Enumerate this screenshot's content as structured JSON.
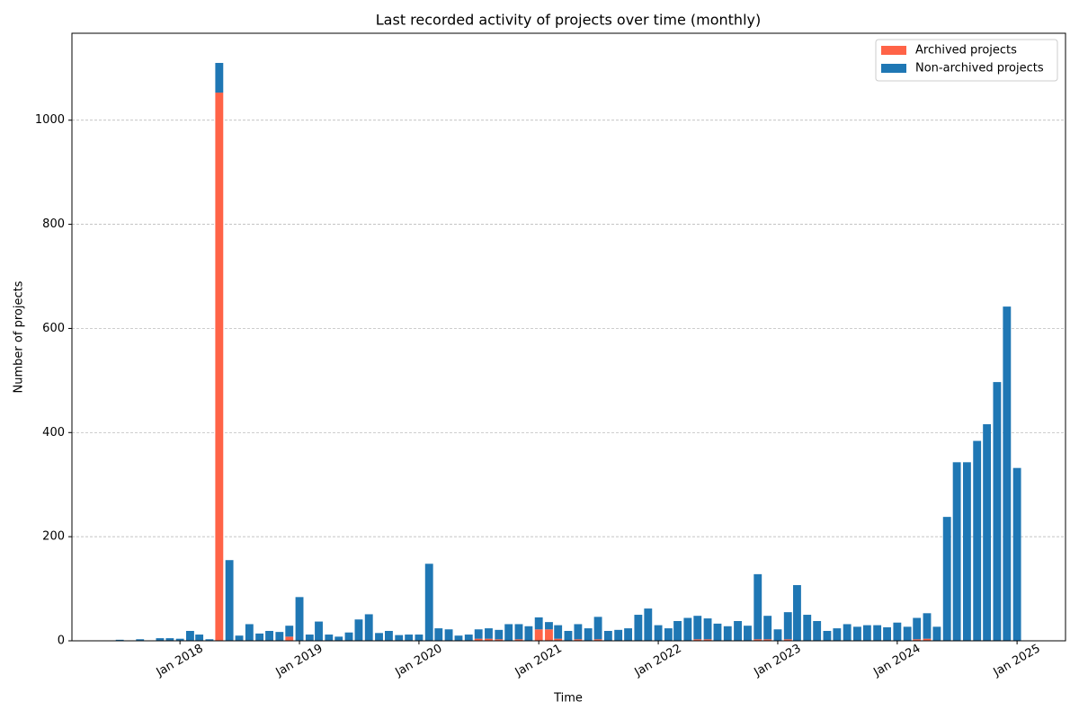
{
  "chart_data": {
    "type": "stacked_bar",
    "title": "Last recorded activity of projects over time (monthly)",
    "xlabel": "Time",
    "ylabel": "Number of projects",
    "x": [
      "2017-07",
      "2017-08",
      "2017-09",
      "2017-10",
      "2017-11",
      "2017-12",
      "2018-01",
      "2018-02",
      "2018-03",
      "2018-04",
      "2018-05",
      "2018-06",
      "2018-07",
      "2018-08",
      "2018-09",
      "2018-10",
      "2018-11",
      "2018-12",
      "2019-01",
      "2019-02",
      "2019-03",
      "2019-04",
      "2019-05",
      "2019-06",
      "2019-07",
      "2019-08",
      "2019-09",
      "2019-10",
      "2019-11",
      "2019-12",
      "2020-01",
      "2020-02",
      "2020-03",
      "2020-04",
      "2020-05",
      "2020-06",
      "2020-07",
      "2020-08",
      "2020-09",
      "2020-10",
      "2020-11",
      "2020-12",
      "2021-01",
      "2021-02",
      "2021-03",
      "2021-04",
      "2021-05",
      "2021-06",
      "2021-07",
      "2021-08",
      "2021-09",
      "2021-10",
      "2021-11",
      "2021-12",
      "2022-01",
      "2022-02",
      "2022-03",
      "2022-04",
      "2022-05",
      "2022-06",
      "2022-07",
      "2022-08",
      "2022-09",
      "2022-10",
      "2022-11",
      "2022-12",
      "2023-01",
      "2023-02",
      "2023-03",
      "2023-04",
      "2023-05",
      "2023-06",
      "2023-07",
      "2023-08",
      "2023-09",
      "2023-10",
      "2023-11",
      "2023-12",
      "2024-01",
      "2024-02",
      "2024-03",
      "2024-04",
      "2024-05",
      "2024-06",
      "2024-07",
      "2024-08",
      "2024-09",
      "2024-10",
      "2024-11",
      "2024-12",
      "2025-01"
    ],
    "series": [
      {
        "name": "Archived projects",
        "color": "#ff6347",
        "values": [
          0,
          0,
          0,
          0,
          0,
          0,
          0,
          0,
          0,
          0,
          1053,
          0,
          0,
          0,
          0,
          0,
          0,
          8,
          0,
          0,
          0,
          0,
          0,
          0,
          0,
          0,
          0,
          0,
          0,
          0,
          0,
          0,
          0,
          0,
          0,
          0,
          4,
          4,
          3,
          0,
          3,
          0,
          22,
          22,
          4,
          0,
          3,
          0,
          3,
          0,
          0,
          0,
          0,
          0,
          0,
          0,
          0,
          0,
          3,
          3,
          0,
          0,
          0,
          0,
          3,
          3,
          0,
          3,
          0,
          0,
          0,
          0,
          0,
          0,
          0,
          0,
          0,
          0,
          0,
          0,
          3,
          4,
          0,
          0,
          0,
          0,
          0,
          0,
          0,
          0,
          0
        ]
      },
      {
        "name": "Non-archived projects",
        "color": "#1f77b4",
        "values": [
          2,
          0,
          3,
          0,
          5,
          5,
          4,
          19,
          12,
          3,
          57,
          155,
          10,
          32,
          14,
          19,
          17,
          21,
          84,
          12,
          37,
          12,
          8,
          16,
          41,
          51,
          15,
          19,
          11,
          12,
          12,
          148,
          24,
          22,
          10,
          12,
          18,
          20,
          18,
          32,
          29,
          28,
          23,
          14,
          26,
          19,
          29,
          24,
          43,
          19,
          21,
          24,
          50,
          62,
          30,
          24,
          38,
          44,
          45,
          40,
          33,
          28,
          38,
          29,
          125,
          45,
          22,
          52,
          107,
          50,
          38,
          19,
          24,
          32,
          27,
          30,
          30,
          26,
          35,
          27,
          41,
          49,
          27,
          238,
          343,
          343,
          384,
          416,
          497,
          642,
          332
        ]
      }
    ],
    "xlim": [
      "2017-02-05",
      "2025-05-29"
    ],
    "xticks": [
      {
        "value": "2018-01",
        "label": "Jan 2018"
      },
      {
        "value": "2019-01",
        "label": "Jan 2019"
      },
      {
        "value": "2020-01",
        "label": "Jan 2020"
      },
      {
        "value": "2021-01",
        "label": "Jan 2021"
      },
      {
        "value": "2022-01",
        "label": "Jan 2022"
      },
      {
        "value": "2023-01",
        "label": "Jan 2023"
      },
      {
        "value": "2024-01",
        "label": "Jan 2024"
      },
      {
        "value": "2025-01",
        "label": "Jan 2025"
      }
    ],
    "ylim": [
      0,
      1167
    ],
    "yticks": [
      0,
      200,
      400,
      600,
      800,
      1000
    ],
    "grid": true,
    "legend": "upper right"
  }
}
